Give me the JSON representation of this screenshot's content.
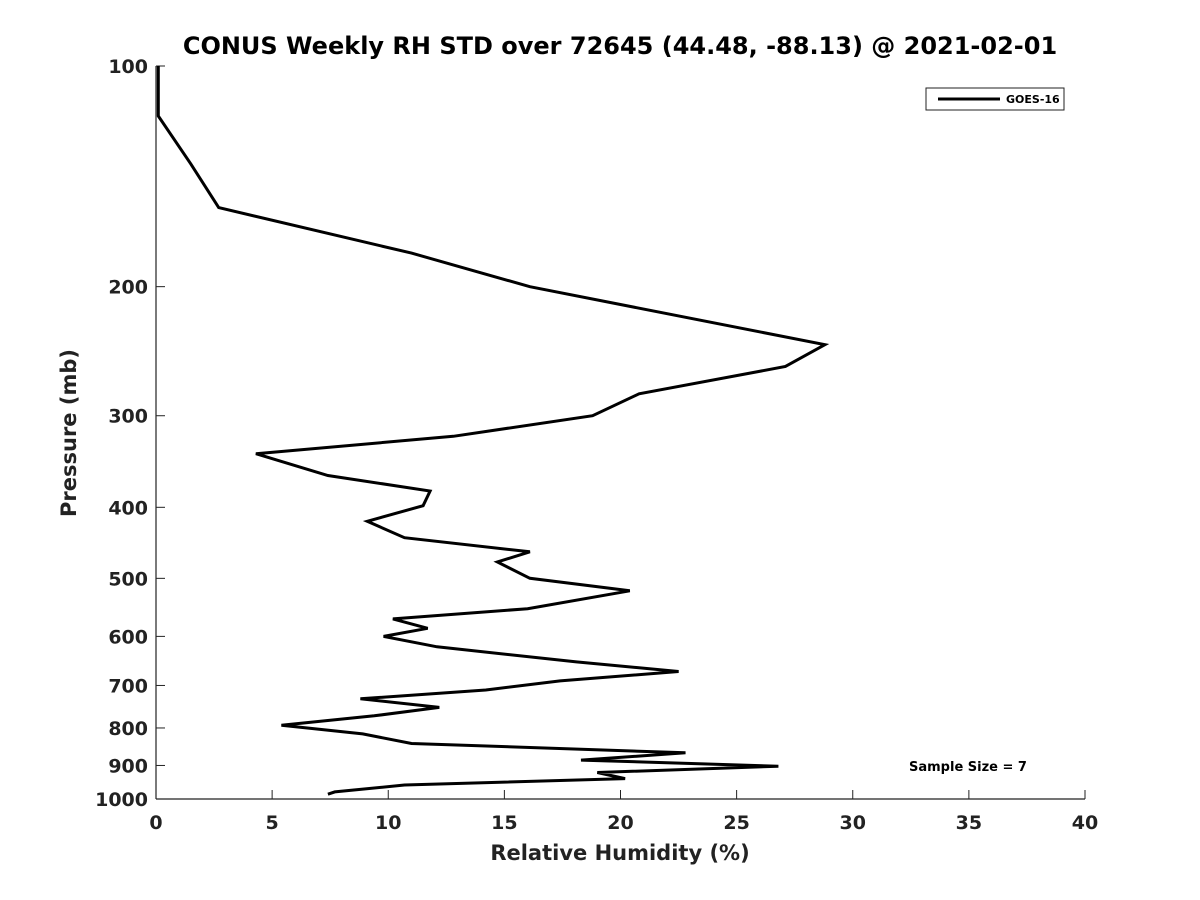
{
  "chart_data": {
    "type": "line",
    "title": "CONUS Weekly RH STD over 72645 (44.48, -88.13) @ 2021-02-01",
    "xlabel": "Relative Humidity (%)",
    "ylabel": "Pressure (mb)",
    "xlim": [
      0,
      40
    ],
    "ylim": [
      100,
      1000
    ],
    "yscale": "log",
    "yreversed": true,
    "xticks": [
      0,
      5,
      10,
      15,
      20,
      25,
      30,
      35,
      40
    ],
    "yticks": [
      100,
      200,
      300,
      400,
      500,
      600,
      700,
      800,
      900,
      1000
    ],
    "grid": false,
    "legend": {
      "location": "top-right",
      "entries": [
        "GOES-16"
      ]
    },
    "annotations": [
      {
        "text": "Sample Size = 7",
        "location": "bottom-right"
      }
    ],
    "series": [
      {
        "name": "GOES-16",
        "color": "#000000",
        "x": [
          0.1,
          0.1,
          1.5,
          2.7,
          11.0,
          16.1,
          28.8,
          27.1,
          20.8,
          18.8,
          12.8,
          4.3,
          7.4,
          11.8,
          11.5,
          9.1,
          10.7,
          16.1,
          14.7,
          16.1,
          20.4,
          16.0,
          10.2,
          11.7,
          9.8,
          12.1,
          18.1,
          22.5,
          17.4,
          14.2,
          8.8,
          12.2,
          9.4,
          5.4,
          8.9,
          11.0,
          22.8,
          18.3,
          26.8,
          19.0,
          20.2,
          10.7,
          7.7,
          7.4
        ],
        "y": [
          100,
          117,
          136,
          156,
          180,
          200,
          240,
          257,
          280,
          300,
          320,
          338,
          362,
          380,
          398,
          418,
          440,
          460,
          475,
          500,
          520,
          550,
          568,
          585,
          600,
          620,
          650,
          670,
          690,
          710,
          730,
          750,
          770,
          793,
          815,
          840,
          865,
          885,
          902,
          920,
          938,
          957,
          978,
          985
        ]
      }
    ]
  }
}
